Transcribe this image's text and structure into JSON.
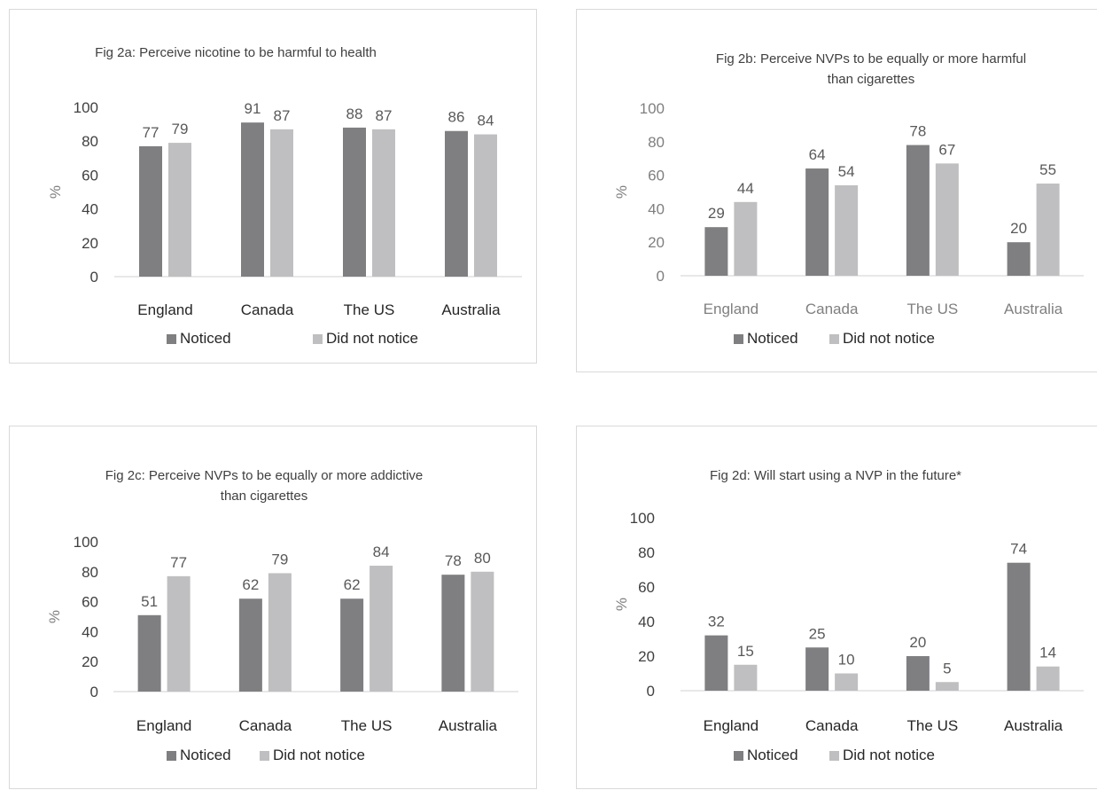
{
  "colors": {
    "noticed": "#7f7f82",
    "did_not_notice": "#bfbfc1",
    "axis": "#d0d0d0"
  },
  "chart_data": [
    {
      "type": "bar",
      "title_lines": [
        "Fig 2a: Perceive nicotine to be harmful to health"
      ],
      "ylabel": "%",
      "categories": [
        "England",
        "Canada",
        "The US",
        "Australia"
      ],
      "yticks": [
        "0",
        "20",
        "40",
        "60",
        "80",
        "100"
      ],
      "ylim": [
        0,
        100
      ],
      "series": [
        {
          "name": "Noticed",
          "values": [
            77,
            91,
            88,
            86
          ]
        },
        {
          "name": "Did not notice",
          "values": [
            79,
            87,
            87,
            84
          ]
        }
      ],
      "legend_position": "bottom"
    },
    {
      "type": "bar",
      "title_lines": [
        "Fig 2b: Perceive NVPs to be equally or more harmful",
        "than cigarettes"
      ],
      "ylabel": "%",
      "categories": [
        "England",
        "Canada",
        "The US",
        "Australia"
      ],
      "yticks": [
        "0",
        "20",
        "40",
        "60",
        "80",
        "100"
      ],
      "ylim": [
        0,
        100
      ],
      "series": [
        {
          "name": "Noticed",
          "values": [
            29,
            64,
            78,
            20
          ]
        },
        {
          "name": "Did not notice",
          "values": [
            44,
            54,
            67,
            55
          ]
        }
      ],
      "legend_position": "bottom"
    },
    {
      "type": "bar",
      "title_lines": [
        "Fig 2c: Perceive NVPs to be equally or more addictive",
        "than cigarettes"
      ],
      "ylabel": "%",
      "categories": [
        "England",
        "Canada",
        "The US",
        "Australia"
      ],
      "yticks": [
        "0",
        "20",
        "40",
        "60",
        "80",
        "100"
      ],
      "ylim": [
        0,
        100
      ],
      "series": [
        {
          "name": "Noticed",
          "values": [
            51,
            62,
            62,
            78
          ]
        },
        {
          "name": "Did not notice",
          "values": [
            77,
            79,
            84,
            80
          ]
        }
      ],
      "legend_position": "bottom"
    },
    {
      "type": "bar",
      "title_lines": [
        "Fig 2d: Will start using a NVP in the future*"
      ],
      "ylabel": "%",
      "categories": [
        "England",
        "Canada",
        "The US",
        "Australia"
      ],
      "yticks": [
        "0",
        "20",
        "40",
        "60",
        "80",
        "100"
      ],
      "ylim": [
        0,
        100
      ],
      "series": [
        {
          "name": "Noticed",
          "values": [
            32,
            25,
            20,
            74
          ]
        },
        {
          "name": "Did not notice",
          "values": [
            15,
            10,
            5,
            14
          ]
        }
      ],
      "legend_position": "bottom"
    }
  ]
}
